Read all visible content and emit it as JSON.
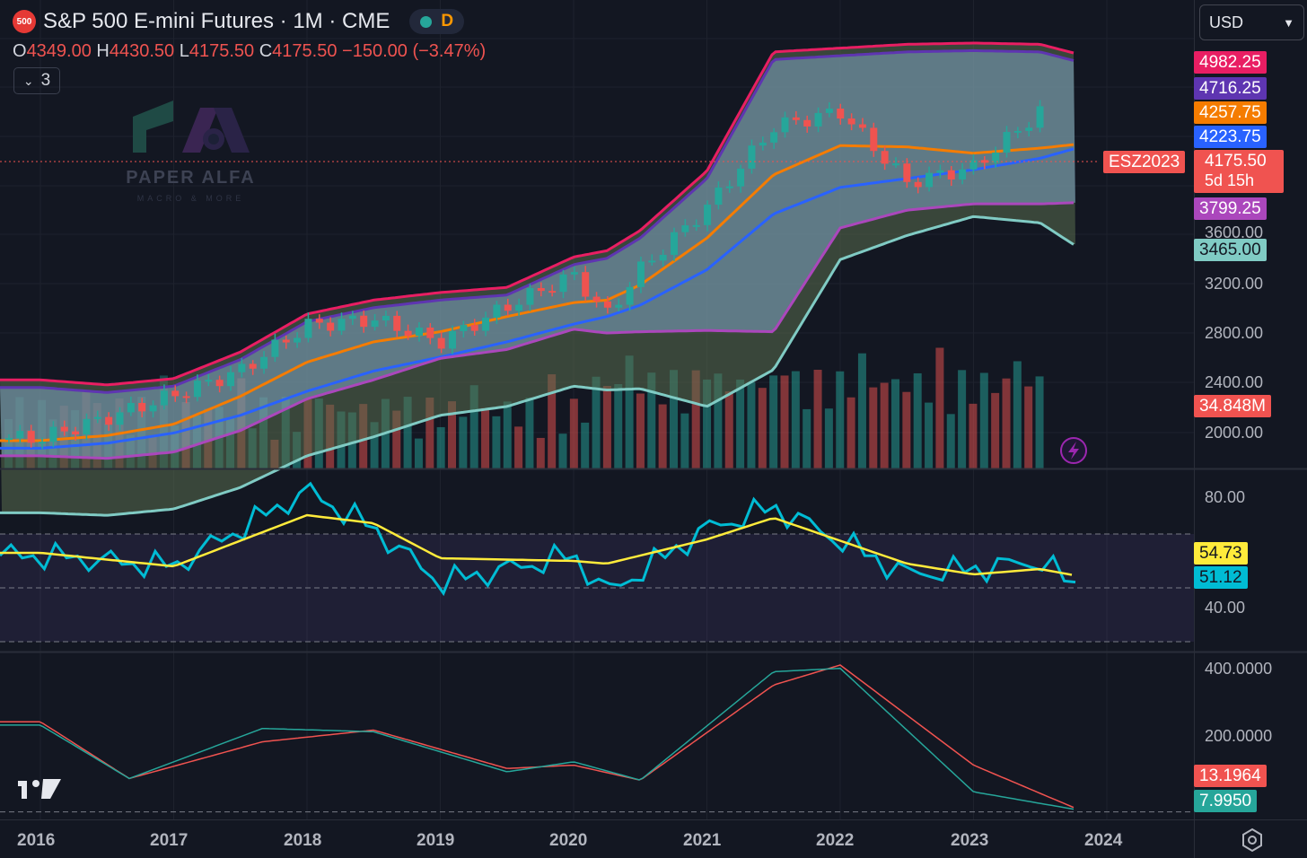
{
  "header": {
    "symbol_badge": "500",
    "title": "S&P 500 E-mini Futures · 1M · CME",
    "interval_badge": "D",
    "ohlc": {
      "o_key": "O",
      "o": "4349.00",
      "h_key": "H",
      "h": "4430.50",
      "l_key": "L",
      "l": "4175.50",
      "c_key": "C",
      "c": "4175.50",
      "change": "−150.00 (−3.47%)"
    },
    "indicators_count": "3",
    "currency": "USD"
  },
  "watermark": {
    "title": "PAPER ALFA",
    "subtitle": "MACRO & MORE"
  },
  "price_tags": [
    {
      "id": "bb-upper",
      "value": "4982.25",
      "color": "#e91e63"
    },
    {
      "id": "kc-upper",
      "value": "4716.25",
      "color": "#5e35b1"
    },
    {
      "id": "ema",
      "value": "4257.75",
      "color": "#f57c00"
    },
    {
      "id": "sma",
      "value": "4223.75",
      "color": "#2962ff"
    },
    {
      "id": "last",
      "value": "4175.50",
      "countdown": "5d 15h",
      "ticker": "ESZ2023",
      "color": "#f05350"
    },
    {
      "id": "bb-lower",
      "value": "3799.25",
      "color": "#ab47bc"
    },
    {
      "id": "kc-lower",
      "value": "3465.00",
      "color": "#80cbc4"
    },
    {
      "id": "volume",
      "value": "34.848M",
      "color": "#f05350"
    }
  ],
  "price_axis": [
    "3600.00",
    "3200.00",
    "2800.00",
    "2400.00",
    "2000.00"
  ],
  "rsi": {
    "axis": [
      "80.00",
      "40.00"
    ],
    "signal_tag": "54.73",
    "rsi_tag": "51.12",
    "signal_color": "#ffeb3b",
    "rsi_color": "#00bcd4"
  },
  "osc": {
    "axis": [
      "400.0000",
      "200.0000"
    ],
    "slow_tag": "13.1964",
    "fast_tag": "7.9950",
    "slow_color": "#f05350",
    "fast_color": "#26a69a"
  },
  "time_axis": [
    "2016",
    "2017",
    "2018",
    "2019",
    "2020",
    "2021",
    "2022",
    "2023",
    "2024"
  ],
  "chart_data": [
    {
      "type": "line",
      "title": "S&P 500 E-mini Futures · 1M · CME",
      "x": [
        "2016-01",
        "2016-07",
        "2017-01",
        "2017-07",
        "2018-01",
        "2018-07",
        "2019-01",
        "2019-07",
        "2020-01",
        "2020-04",
        "2020-07",
        "2021-01",
        "2021-07",
        "2022-01",
        "2022-07",
        "2023-01",
        "2023-07",
        "2023-10"
      ],
      "series": [
        {
          "name": "",
          "role": "close",
          "values": [
            1940,
            2100,
            2280,
            2470,
            2830,
            2880,
            2700,
            2980,
            3230,
            2910,
            3270,
            3760,
            4400,
            4520,
            3960,
            4080,
            4520,
            4175
          ]
        },
        {
          "name": "",
          "role": "bb_upper",
          "values": [
            2400,
            2360,
            2410,
            2620,
            2920,
            3030,
            3090,
            3130,
            3370,
            3420,
            3580,
            4050,
            4990,
            5020,
            5050,
            5060,
            5050,
            4982
          ]
        },
        {
          "name": "",
          "role": "bb_lower",
          "values": [
            1800,
            1780,
            1830,
            2000,
            2250,
            2400,
            2570,
            2640,
            2800,
            2770,
            2780,
            2790,
            2780,
            3600,
            3740,
            3790,
            3790,
            3799
          ]
        },
        {
          "name": "",
          "role": "ema",
          "values": [
            1920,
            1960,
            2050,
            2270,
            2540,
            2700,
            2780,
            2900,
            3010,
            3030,
            3150,
            3520,
            4020,
            4250,
            4240,
            4190,
            4230,
            4258
          ]
        },
        {
          "name": "",
          "role": "sma",
          "values": [
            1860,
            1900,
            1980,
            2120,
            2310,
            2470,
            2580,
            2700,
            2840,
            2900,
            2990,
            3270,
            3710,
            3920,
            3990,
            4060,
            4150,
            4224
          ]
        }
      ],
      "volume_last": "34.848M",
      "ylim": [
        1700,
        5400
      ]
    },
    {
      "type": "line",
      "x": [
        "2016-01",
        "2017-01",
        "2018-01",
        "2018-07",
        "2019-01",
        "2020-01",
        "2020-04",
        "2021-01",
        "2021-07",
        "2022-07",
        "2023-01",
        "2023-07",
        "2023-10"
      ],
      "series": [
        {
          "name": "",
          "role": "rsi",
          "values": [
            62,
            58,
            86,
            72,
            52,
            62,
            48,
            72,
            80,
            55,
            57,
            60,
            51.12
          ]
        },
        {
          "name": "",
          "role": "rsi_ma",
          "values": [
            63,
            58,
            77,
            74,
            61,
            60,
            59,
            68,
            76,
            59,
            55,
            57,
            54.73
          ]
        }
      ],
      "ylim": [
        27,
        93
      ]
    },
    {
      "type": "line",
      "x": [
        "2016-01",
        "2016-09",
        "2017-09",
        "2018-07",
        "2019-07",
        "2020-01",
        "2020-07",
        "2021-07",
        "2022-01",
        "2023-01",
        "2023-10"
      ],
      "series": [
        {
          "name": "",
          "role": "fast",
          "values": [
            260,
            100,
            250,
            240,
            120,
            150,
            95,
            420,
            430,
            60,
            7.995
          ]
        },
        {
          "name": "",
          "role": "slow",
          "values": [
            270,
            100,
            210,
            245,
            130,
            140,
            95,
            380,
            440,
            140,
            13.1964
          ]
        }
      ],
      "ylim": [
        -20,
        475
      ]
    }
  ]
}
